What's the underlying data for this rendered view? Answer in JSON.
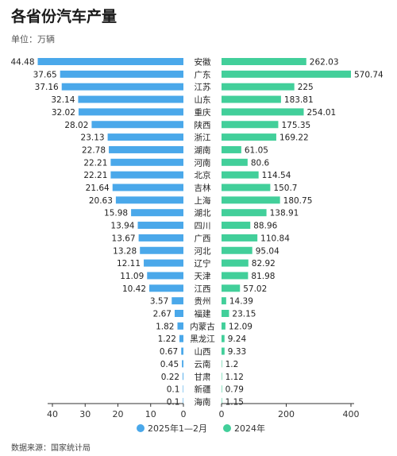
{
  "title": "各省份汽车产量",
  "unit": "单位：万辆",
  "source": "数据来源：国家统计局",
  "colors": {
    "left": "#4aa8ea",
    "right": "#42cf9a"
  },
  "chart_data": {
    "type": "bar",
    "categories": [
      "安徽",
      "广东",
      "江苏",
      "山东",
      "重庆",
      "陕西",
      "浙江",
      "湖南",
      "河南",
      "北京",
      "吉林",
      "上海",
      "湖北",
      "四川",
      "广西",
      "河北",
      "辽宁",
      "天津",
      "江西",
      "贵州",
      "福建",
      "内蒙古",
      "黑龙江",
      "山西",
      "云南",
      "甘肃",
      "新疆",
      "海南"
    ],
    "series": [
      {
        "name": "2025年1—2月",
        "values": [
          44.48,
          37.65,
          37.16,
          32.14,
          32.02,
          28.02,
          23.13,
          22.78,
          22.21,
          22.21,
          21.64,
          20.63,
          15.98,
          13.94,
          13.67,
          13.28,
          12.11,
          11.09,
          10.42,
          3.57,
          2.67,
          1.82,
          1.22,
          0.67,
          0.45,
          0.22,
          0.1,
          0.1
        ],
        "value_labels": [
          "44.48",
          "37.65",
          "37.16",
          "32.14",
          "32.02",
          "28.02",
          "23.13",
          "22.78",
          "22.21",
          "22.21",
          "21.64",
          "20.63",
          "15.98",
          "13.94",
          "13.67",
          "13.28",
          "12.11",
          "11.09",
          "10.42",
          "3.57",
          "2.67",
          "1.82",
          "1.22",
          "0.67",
          "0.45",
          "0.22",
          "0.1",
          "0.1"
        ],
        "xlim": [
          0,
          45
        ],
        "ticks": [
          40,
          30,
          20,
          10,
          0
        ]
      },
      {
        "name": "2024年",
        "values": [
          262.03,
          570.74,
          225,
          183.81,
          254.01,
          175.35,
          169.22,
          61.05,
          80.6,
          114.54,
          150.7,
          180.75,
          138.91,
          88.96,
          110.84,
          95.04,
          82.92,
          81.98,
          57.02,
          14.39,
          23.15,
          12.09,
          9.24,
          9.33,
          1.2,
          1.12,
          0.79,
          1.15
        ],
        "value_labels": [
          "262.03",
          "570.74",
          "225",
          "183.81",
          "254.01",
          "175.35",
          "169.22",
          "61.05",
          "80.6",
          "114.54",
          "150.7",
          "180.75",
          "138.91",
          "88.96",
          "110.84",
          "95.04",
          "82.92",
          "81.98",
          "57.02",
          "14.39",
          "23.15",
          "12.09",
          "9.24",
          "9.33",
          "1.2",
          "1.12",
          "0.79",
          "1.15"
        ],
        "xlim": [
          0,
          560
        ],
        "ticks": [
          0,
          200,
          400
        ]
      }
    ],
    "legend_position": "bottom"
  }
}
